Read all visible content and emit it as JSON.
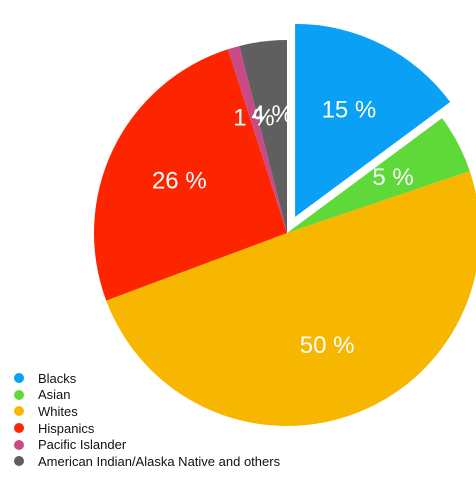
{
  "chart_data": {
    "type": "pie",
    "title": "",
    "categories": [
      "Blacks",
      "Asian",
      "Whites",
      "Hispanics",
      "Pacific Islander",
      "American Indian/Alaska Native and others"
    ],
    "values": [
      15,
      5,
      50,
      26,
      1,
      4
    ],
    "data_labels": [
      "15 %",
      "5 %",
      "50 %",
      "26 %",
      "1 %",
      "4 %"
    ],
    "colors": [
      "#0aa0f5",
      "#5fd83a",
      "#f7b700",
      "#fd2500",
      "#c94a86",
      "#5f5f5f"
    ],
    "exploded": [
      "Blacks"
    ],
    "legend_position": "bottom-left"
  }
}
